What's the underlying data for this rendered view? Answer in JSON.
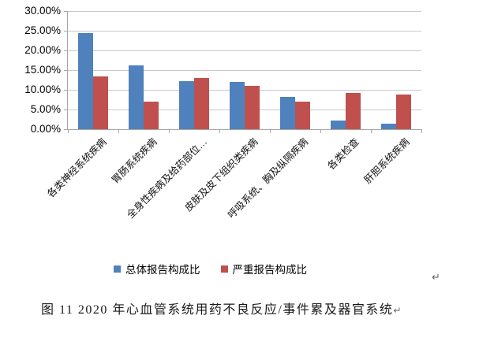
{
  "chart_data": {
    "type": "bar",
    "title": "",
    "xlabel": "",
    "ylabel": "",
    "categories": [
      "各类神经系统疾病",
      "胃肠系统疾病",
      "全身性疾病及给药部位…",
      "皮肤及皮下组织类疾病",
      "呼吸系统、胸及纵隔疾病",
      "各类检查",
      "肝胆系统疾病"
    ],
    "series": [
      {
        "name": "总体报告构成比",
        "color": "#4F81BD",
        "values": [
          24.5,
          16.3,
          12.2,
          12.0,
          8.2,
          2.3,
          1.5
        ]
      },
      {
        "name": "严重报告构成比",
        "color": "#C0504D",
        "values": [
          13.4,
          7.0,
          13.0,
          11.1,
          7.0,
          9.3,
          8.8
        ]
      }
    ],
    "ylim": [
      0,
      30
    ],
    "ytick_step": 5,
    "ytick_labels": [
      "30.00%",
      "25.00%",
      "20.00%",
      "15.00%",
      "10.00%",
      "5.00%",
      "0.00%"
    ],
    "grid": true,
    "legend_position": "bottom"
  },
  "caption": {
    "text": "图 11  2020 年心血管系统用药不良反应/事件累及器官系统",
    "return_mark": "↵"
  },
  "page": {
    "return_mark": "↵"
  },
  "colors": {
    "series_total": "#4F81BD",
    "series_severe": "#C0504D",
    "gridline": "#C9C9C9",
    "axis": "#A6A6A6"
  }
}
